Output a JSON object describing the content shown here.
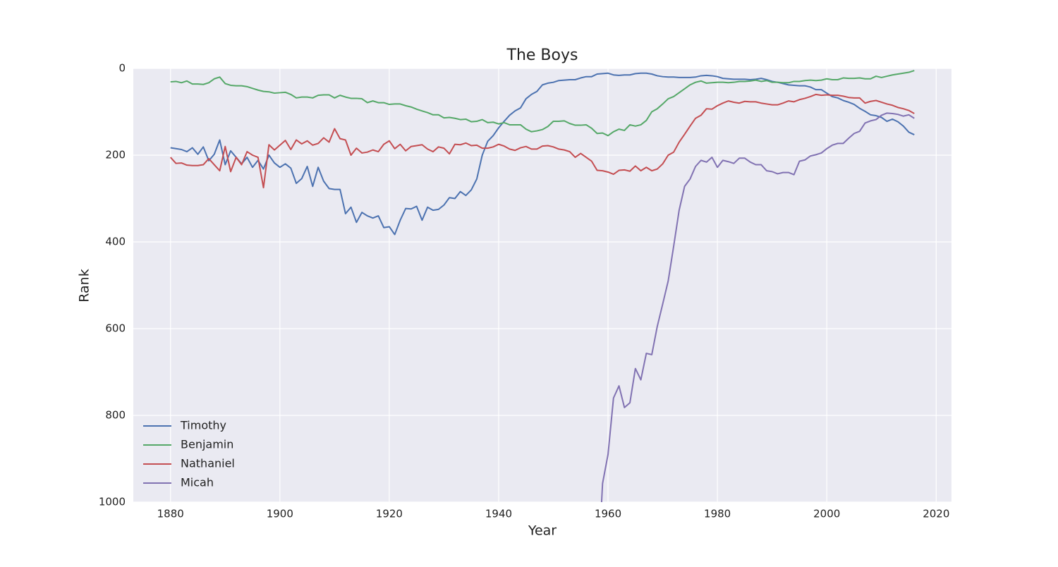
{
  "chart_data": {
    "type": "line",
    "title": "The Boys",
    "x_label": "Year",
    "y_label": "Rank",
    "x": [
      1880,
      1881,
      1882,
      1883,
      1884,
      1885,
      1886,
      1887,
      1888,
      1889,
      1890,
      1891,
      1892,
      1893,
      1894,
      1895,
      1896,
      1897,
      1898,
      1899,
      1900,
      1901,
      1902,
      1903,
      1904,
      1905,
      1906,
      1907,
      1908,
      1909,
      1910,
      1911,
      1912,
      1913,
      1914,
      1915,
      1916,
      1917,
      1918,
      1919,
      1920,
      1921,
      1922,
      1923,
      1924,
      1925,
      1926,
      1927,
      1928,
      1929,
      1930,
      1931,
      1932,
      1933,
      1934,
      1935,
      1936,
      1937,
      1938,
      1939,
      1940,
      1941,
      1942,
      1943,
      1944,
      1945,
      1946,
      1947,
      1948,
      1949,
      1950,
      1951,
      1952,
      1953,
      1954,
      1955,
      1956,
      1957,
      1958,
      1959,
      1960,
      1961,
      1962,
      1963,
      1964,
      1965,
      1966,
      1967,
      1968,
      1969,
      1970,
      1971,
      1972,
      1973,
      1974,
      1975,
      1976,
      1977,
      1978,
      1979,
      1980,
      1981,
      1982,
      1983,
      1984,
      1985,
      1986,
      1987,
      1988,
      1989,
      1990,
      1991,
      1992,
      1993,
      1994,
      1995,
      1996,
      1997,
      1998,
      1999,
      2000,
      2001,
      2002,
      2003,
      2004,
      2005,
      2006,
      2007,
      2008,
      2009,
      2010,
      2011,
      2012,
      2013,
      2014,
      2015,
      2016
    ],
    "series": [
      {
        "name": "Timothy",
        "color": "#4c72b0",
        "values": [
          183,
          185,
          187,
          192,
          183,
          198,
          181,
          213,
          198,
          165,
          222,
          190,
          205,
          220,
          205,
          228,
          212,
          232,
          200,
          218,
          228,
          220,
          230,
          265,
          254,
          226,
          272,
          228,
          260,
          277,
          279,
          279,
          335,
          320,
          355,
          332,
          340,
          345,
          340,
          367,
          365,
          383,
          350,
          323,
          324,
          318,
          350,
          320,
          327,
          325,
          315,
          298,
          300,
          284,
          293,
          280,
          255,
          200,
          168,
          155,
          137,
          122,
          108,
          98,
          91,
          70,
          60,
          53,
          38,
          34,
          32,
          28,
          27,
          26,
          26,
          22,
          19,
          19,
          13,
          12,
          11,
          15,
          16,
          15,
          15,
          12,
          11,
          11,
          13,
          17,
          19,
          20,
          20,
          21,
          21,
          21,
          20,
          17,
          16,
          17,
          19,
          23,
          24,
          25,
          25,
          25,
          26,
          25,
          23,
          26,
          30,
          32,
          35,
          38,
          39,
          40,
          40,
          43,
          49,
          49,
          57,
          65,
          68,
          74,
          78,
          83,
          92,
          99,
          107,
          109,
          113,
          122,
          117,
          123,
          133,
          147,
          153
        ]
      },
      {
        "name": "Benjamin",
        "color": "#55a868",
        "values": [
          31,
          30,
          33,
          29,
          36,
          36,
          37,
          33,
          24,
          20,
          35,
          39,
          40,
          40,
          42,
          46,
          50,
          53,
          54,
          57,
          56,
          55,
          60,
          68,
          66,
          66,
          68,
          62,
          61,
          61,
          68,
          62,
          66,
          69,
          69,
          70,
          79,
          75,
          79,
          79,
          83,
          82,
          82,
          86,
          89,
          94,
          98,
          102,
          107,
          107,
          114,
          113,
          115,
          118,
          117,
          123,
          122,
          118,
          125,
          124,
          128,
          125,
          130,
          130,
          130,
          140,
          146,
          144,
          141,
          134,
          122,
          122,
          121,
          127,
          131,
          131,
          130,
          138,
          150,
          149,
          155,
          146,
          140,
          143,
          130,
          133,
          130,
          120,
          100,
          93,
          82,
          70,
          65,
          56,
          47,
          38,
          32,
          29,
          34,
          33,
          32,
          32,
          33,
          32,
          30,
          30,
          29,
          27,
          30,
          28,
          32,
          32,
          33,
          33,
          30,
          30,
          28,
          27,
          28,
          27,
          24,
          26,
          26,
          22,
          23,
          23,
          22,
          24,
          24,
          18,
          21,
          18,
          15,
          13,
          11,
          9,
          5
        ]
      },
      {
        "name": "Nathaniel",
        "color": "#c44e52",
        "values": [
          205,
          219,
          218,
          223,
          224,
          224,
          222,
          208,
          222,
          236,
          180,
          238,
          205,
          222,
          192,
          200,
          205,
          275,
          176,
          188,
          177,
          166,
          187,
          165,
          174,
          167,
          177,
          173,
          160,
          170,
          139,
          162,
          165,
          200,
          184,
          195,
          193,
          188,
          192,
          175,
          167,
          185,
          175,
          190,
          180,
          178,
          176,
          186,
          192,
          181,
          184,
          197,
          175,
          176,
          172,
          178,
          177,
          184,
          184,
          181,
          175,
          179,
          186,
          189,
          183,
          180,
          186,
          186,
          179,
          178,
          181,
          186,
          188,
          192,
          205,
          196,
          205,
          214,
          235,
          236,
          239,
          244,
          235,
          234,
          237,
          225,
          236,
          228,
          236,
          232,
          220,
          200,
          193,
          170,
          152,
          133,
          115,
          108,
          93,
          94,
          86,
          80,
          75,
          78,
          80,
          76,
          77,
          77,
          80,
          82,
          84,
          84,
          80,
          75,
          77,
          72,
          69,
          65,
          60,
          62,
          61,
          62,
          62,
          64,
          67,
          68,
          68,
          80,
          76,
          74,
          78,
          82,
          85,
          90,
          93,
          97,
          104
        ]
      },
      {
        "name": "Micah",
        "color": "#8172b2",
        "values": [
          null,
          null,
          null,
          null,
          null,
          null,
          null,
          null,
          null,
          null,
          null,
          null,
          null,
          null,
          null,
          null,
          null,
          null,
          null,
          null,
          null,
          null,
          null,
          null,
          null,
          null,
          null,
          null,
          null,
          null,
          null,
          null,
          null,
          null,
          null,
          null,
          null,
          null,
          null,
          null,
          null,
          null,
          null,
          null,
          null,
          null,
          null,
          null,
          null,
          null,
          null,
          null,
          null,
          null,
          null,
          null,
          null,
          null,
          null,
          null,
          null,
          null,
          null,
          null,
          null,
          null,
          null,
          null,
          null,
          null,
          null,
          null,
          null,
          null,
          null,
          null,
          null,
          null,
          1200,
          957,
          890,
          760,
          732,
          782,
          771,
          692,
          718,
          657,
          660,
          595,
          543,
          490,
          410,
          327,
          272,
          255,
          226,
          212,
          216,
          205,
          228,
          212,
          215,
          219,
          207,
          207,
          216,
          222,
          222,
          236,
          238,
          243,
          240,
          240,
          245,
          214,
          211,
          202,
          199,
          195,
          185,
          177,
          173,
          173,
          161,
          150,
          145,
          126,
          121,
          118,
          108,
          103,
          104,
          106,
          110,
          107,
          115
        ]
      }
    ],
    "xlim": [
      1873.2,
      2022.8
    ],
    "xticks": [
      1880,
      1900,
      1920,
      1940,
      1960,
      1980,
      2000,
      2020
    ],
    "ylim": [
      0,
      1000
    ],
    "yticks": [
      0,
      200,
      400,
      600,
      800,
      1000
    ],
    "y_inverted": true,
    "grid": true,
    "legend": "lower left"
  }
}
